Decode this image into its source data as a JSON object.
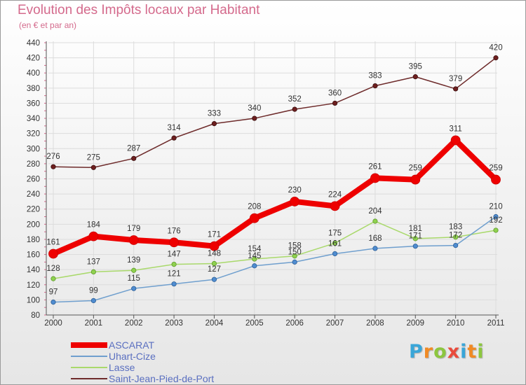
{
  "header": {
    "title": "Evolution des Impôts locaux par Habitant",
    "subtitle": "(en € et par an)"
  },
  "brand": {
    "letters": [
      "P",
      "r",
      "o",
      "x",
      "i",
      "t",
      "i"
    ],
    "colors": [
      "#3aa6d8",
      "#f08a24",
      "#8cc63f",
      "#e94b3c",
      "#3aa6d8",
      "#f08a24",
      "#8cc63f"
    ]
  },
  "chart_data": {
    "type": "line",
    "title": "Evolution des Impôts locaux par Habitant",
    "subtitle": "(en € et par an)",
    "xlabel": "",
    "ylabel": "",
    "categories": [
      "2000",
      "2001",
      "2002",
      "2003",
      "2004",
      "2005",
      "2006",
      "2007",
      "2008",
      "2009",
      "2010",
      "2011"
    ],
    "ylim": [
      80,
      440
    ],
    "yticks": [
      80,
      100,
      120,
      140,
      160,
      180,
      200,
      220,
      240,
      260,
      280,
      300,
      320,
      340,
      360,
      380,
      400,
      420,
      440
    ],
    "grid": true,
    "legend_position": "bottom-left",
    "series": [
      {
        "name": "ASCARAT",
        "color": "#ee0000",
        "values": [
          161,
          184,
          179,
          176,
          171,
          208,
          230,
          224,
          261,
          259,
          311,
          259
        ]
      },
      {
        "name": "Uhart-Cize",
        "color": "#6f9fce",
        "values": [
          97,
          99,
          115,
          121,
          127,
          145,
          150,
          161,
          168,
          171,
          172,
          210
        ]
      },
      {
        "name": "Lasse",
        "color": "#a9d96b",
        "values": [
          128,
          137,
          139,
          147,
          148,
          154,
          158,
          175,
          204,
          181,
          183,
          192
        ]
      },
      {
        "name": "Saint-Jean-Pied-de-Port",
        "color": "#6e2b2b",
        "values": [
          276,
          275,
          287,
          314,
          333,
          340,
          352,
          360,
          383,
          395,
          379,
          420
        ]
      }
    ]
  }
}
